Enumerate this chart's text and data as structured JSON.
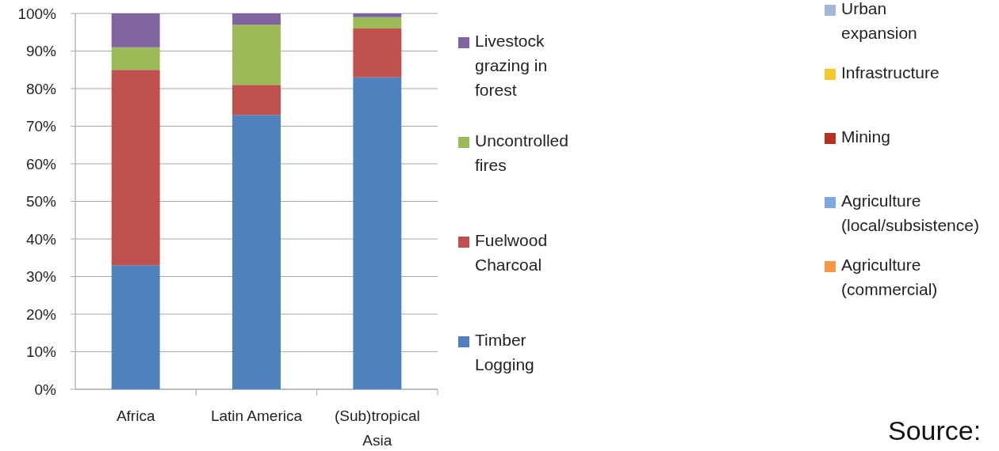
{
  "chart_data": {
    "type": "bar",
    "stacked": true,
    "categories": [
      "Africa",
      "Latin America",
      "(Sub)tropical Asia"
    ],
    "series": [
      {
        "name": "Timber Logging",
        "color": "#4f81bd",
        "values": [
          33,
          73,
          83
        ]
      },
      {
        "name": "Fuelwood Charcoal",
        "color": "#c0504d",
        "values": [
          52,
          8,
          13
        ]
      },
      {
        "name": "Uncontrolled fires",
        "color": "#9bbb59",
        "values": [
          6,
          16,
          3
        ]
      },
      {
        "name": "Livestock grazing in forest",
        "color": "#8064a2",
        "values": [
          9,
          3,
          1
        ]
      },
      {
        "name": "Agriculture (commercial)",
        "color": "#f79646",
        "values": [
          null,
          null,
          null
        ]
      },
      {
        "name": "Agriculture (local/subsistence)",
        "color": "#7ea6e0",
        "values": [
          null,
          null,
          null
        ]
      },
      {
        "name": "Mining",
        "color": "#b7311f",
        "values": [
          null,
          null,
          null
        ]
      },
      {
        "name": "Infrastructure",
        "color": "#f5c92c",
        "values": [
          null,
          null,
          null
        ]
      },
      {
        "name": "Urban expansion",
        "color": "#a5b5d6",
        "values": [
          null,
          null,
          null
        ]
      }
    ],
    "ylim": [
      0,
      100
    ],
    "yticks": [
      {
        "value": 0,
        "label": "0%"
      },
      {
        "value": 10,
        "label": "10%"
      },
      {
        "value": 20,
        "label": "20%"
      },
      {
        "value": 30,
        "label": "30%"
      },
      {
        "value": 40,
        "label": "40%"
      },
      {
        "value": 50,
        "label": "50%"
      },
      {
        "value": 60,
        "label": "60%"
      },
      {
        "value": 70,
        "label": "70%"
      },
      {
        "value": 80,
        "label": "80%"
      },
      {
        "value": 90,
        "label": "90%"
      },
      {
        "value": 100,
        "label": "100%"
      }
    ],
    "grid": "y",
    "legend": "right",
    "annotations": [
      "Source:"
    ]
  }
}
